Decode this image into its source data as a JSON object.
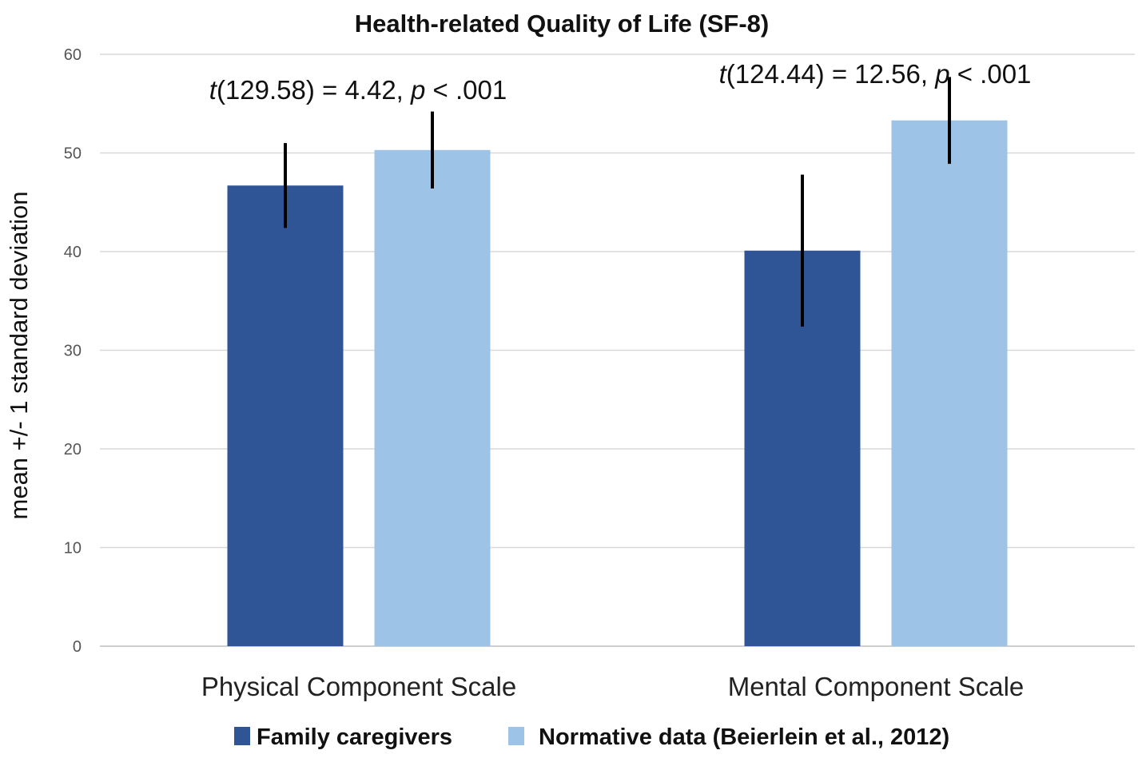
{
  "chart_data": {
    "type": "bar",
    "title": "Health-related Quality of Life (SF-8)",
    "xlabel": "",
    "ylabel": "mean +/- 1 standard deviation",
    "ylim": [
      0,
      60
    ],
    "yticks": [
      0,
      10,
      20,
      30,
      40,
      50,
      60
    ],
    "grid": true,
    "legend_position": "bottom",
    "categories": [
      "Physical Component Scale",
      "Mental Component Scale"
    ],
    "series": [
      {
        "name": "Family caregivers",
        "color": "#2f5597",
        "values": [
          46.7,
          40.1
        ],
        "sd": [
          4.3,
          7.7
        ]
      },
      {
        "name": "Normative data (Beierlein et al., 2012)",
        "color": "#9dc3e6",
        "values": [
          50.3,
          53.3
        ],
        "sd": [
          3.9,
          4.4
        ]
      }
    ],
    "annotations": [
      {
        "category": 0,
        "t_prefix": "t",
        "t_body": "(129.58) = 4.42, ",
        "p_prefix": "p",
        "p_body": " < .001"
      },
      {
        "category": 1,
        "t_prefix": "t",
        "t_body": "(124.44) = 12.56, ",
        "p_prefix": "p",
        "p_body": " < .001"
      }
    ]
  }
}
